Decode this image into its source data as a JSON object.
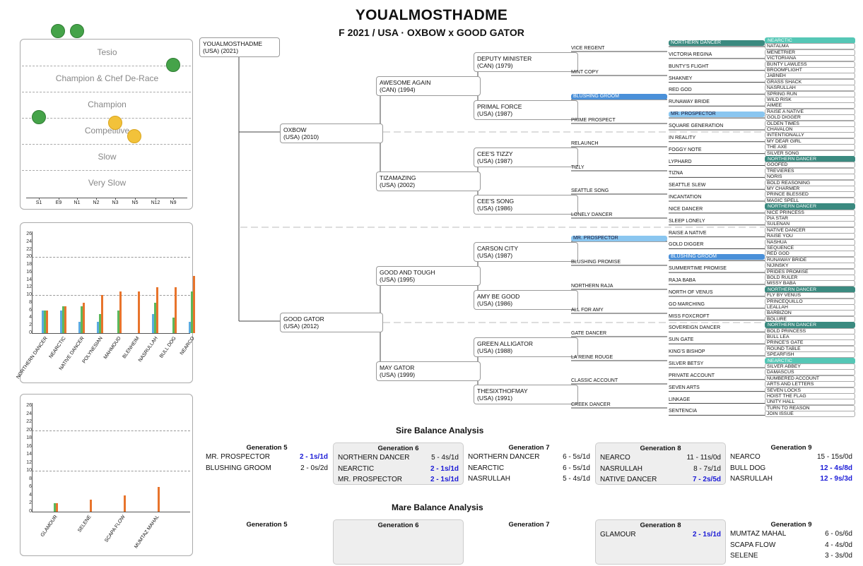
{
  "header": {
    "title": "YOUALMOSTHADME",
    "subtitle": "F 2021 / USA · OXBOW x GOOD GATOR"
  },
  "classification": {
    "levels": [
      "Tesio",
      "Champion & Chef De-Race",
      "Champion",
      "Competitive",
      "Slow",
      "Very Slow"
    ],
    "x_ticks": [
      "S1",
      "E9",
      "N1",
      "N2",
      "N3",
      "N5",
      "N12",
      "N9"
    ],
    "dots": [
      {
        "color": "green",
        "label": "S1"
      },
      {
        "color": "green",
        "label": "E9"
      },
      {
        "color": "green",
        "label": "N9"
      },
      {
        "color": "green",
        "label": "S1"
      },
      {
        "color": "yellow",
        "label": "N3"
      },
      {
        "color": "yellow",
        "label": "N5"
      }
    ]
  },
  "sire_chart": {
    "type": "bar",
    "ylim": [
      0,
      26
    ],
    "ticks": [
      0,
      2,
      4,
      6,
      8,
      10,
      12,
      14,
      16,
      18,
      20,
      22,
      24,
      26
    ],
    "categories": [
      "NORTHERN DANCER",
      "NEARCTIC",
      "NATIVE DANCER",
      "POLYNESIAN",
      "MAHMOUD",
      "BLENHEIM",
      "NASRULLAH",
      "BULL DOG",
      "NEARCO"
    ],
    "series": [
      {
        "color": "#5aabe0",
        "values": [
          6,
          6,
          3,
          3,
          0,
          0,
          5,
          0,
          3
        ]
      },
      {
        "color": "#5cb85c",
        "values": [
          6,
          7,
          7,
          5,
          6,
          0,
          8,
          4,
          11
        ]
      },
      {
        "color": "#e8742c",
        "values": [
          6,
          7,
          8,
          10,
          11,
          11,
          12,
          12,
          15
        ]
      }
    ]
  },
  "mare_chart": {
    "type": "bar",
    "ylim": [
      0,
      26
    ],
    "ticks": [
      0,
      2,
      4,
      6,
      8,
      10,
      12,
      14,
      16,
      18,
      20,
      22,
      24,
      26
    ],
    "categories": [
      "GLAMOUR",
      "SELENE",
      "SCAPA FLOW",
      "MUMTAZ MAHAL"
    ],
    "series": [
      {
        "color": "#5aabe0",
        "values": [
          0,
          0,
          0,
          0
        ]
      },
      {
        "color": "#5cb85c",
        "values": [
          2,
          0,
          0,
          0
        ]
      },
      {
        "color": "#e8742c",
        "values": [
          2,
          3,
          4,
          6
        ]
      }
    ]
  },
  "pedigree": {
    "g0": {
      "name": "YOUALMOSTHADME",
      "info": "(USA) (2021)"
    },
    "g1": [
      {
        "name": "OXBOW",
        "info": "(USA) (2010)"
      },
      {
        "name": "GOOD GATOR",
        "info": "(USA) (2012)"
      }
    ],
    "g2": [
      {
        "name": "AWESOME AGAIN",
        "info": "(CAN) (1994)"
      },
      {
        "name": "TIZAMAZING",
        "info": "(USA) (2002)"
      },
      {
        "name": "GOOD AND TOUGH",
        "info": "(USA) (1995)"
      },
      {
        "name": "MAY GATOR",
        "info": "(USA) (1999)"
      }
    ],
    "g3": [
      {
        "name": "DEPUTY MINISTER",
        "info": "(CAN) (1979)"
      },
      {
        "name": "PRIMAL FORCE",
        "info": "(USA) (1987)"
      },
      {
        "name": "CEE'S TIZZY",
        "info": "(USA) (1987)"
      },
      {
        "name": "CEE'S SONG",
        "info": "(USA) (1986)"
      },
      {
        "name": "CARSON CITY",
        "info": "(USA) (1987)"
      },
      {
        "name": "AMY BE GOOD",
        "info": "(USA) (1986)"
      },
      {
        "name": "GREEN ALLIGATOR",
        "info": "(USA) (1988)"
      },
      {
        "name": "THESIXTHOFMAY",
        "info": "(USA) (1991)"
      }
    ],
    "g4": [
      "VICE REGENT",
      "MINT COPY",
      "BLUSHING GROOM",
      "PRIME PROSPECT",
      "RELAUNCH",
      "TIZLY",
      "SEATTLE SONG",
      "LONELY DANCER",
      "MR. PROSPECTOR",
      "BLUSHING PROMISE",
      "NORTHERN RAJA",
      "ALL FOR AMY",
      "GATE DANCER",
      "LA REINE ROUGE",
      "CLASSIC ACCOUNT",
      "CREEK DANCER"
    ],
    "g5": [
      "NORTHERN DANCER",
      "VICTORIA REGINA",
      "BUNTY'S FLIGHT",
      "SHAKNEY",
      "RED GOD",
      "RUNAWAY BRIDE",
      "MR. PROSPECTOR",
      "SQUARE GENERATION",
      "IN REALITY",
      "FOGGY NOTE",
      "LYPHARD",
      "TIZNA",
      "SEATTLE SLEW",
      "INCANTATION",
      "NICE DANCER",
      "SLEEP LONELY",
      "RAISE A NATIVE",
      "GOLD DIGGER",
      "BLUSHING GROOM",
      "SUMMERTIME PROMISE",
      "RAJA BABA",
      "NORTH OF VENUS",
      "GO MARCHING",
      "MISS FOXCROFT",
      "SOVEREIGN DANCER",
      "SUN GATE",
      "KING'S BISHOP",
      "SILVER BETSY",
      "PRIVATE ACCOUNT",
      "SEVEN ARTS",
      "LINKAGE",
      "SENTENCIA"
    ],
    "g6": [
      "NEARCTIC",
      "NATALMA",
      "MENETRIER",
      "VICTORIANA",
      "BUNTY LAWLESS",
      "BROOMFLIGHT",
      "JABNEH",
      "GRASS SHACK",
      "NASRULLAH",
      "SPRING RUN",
      "WILD RISK",
      "AIMEE",
      "RAISE A NATIVE",
      "GOLD DIGGER",
      "OLDEN TIMES",
      "CHAVALON",
      "INTENTIONALLY",
      "MY DEAR GIRL",
      "THE AXE",
      "SILVER SONG",
      "NORTHERN DANCER",
      "GOOFED",
      "TREVIERES",
      "NORIS",
      "BOLD REASONING",
      "MY CHARMER",
      "PRINCE BLESSED",
      "MAGIC SPELL",
      "NORTHERN DANCER",
      "NICE PRINCESS",
      "PIA STAR",
      "SULENAN",
      "NATIVE DANCER",
      "RAISE YOU",
      "NASHUA",
      "SEQUENCE",
      "RED GOD",
      "RUNAWAY BRIDE",
      "NIJINSKY",
      "PRIDES PROMISE",
      "BOLD RULER",
      "MISSY BABA",
      "NORTHERN DANCER",
      "FLY BY VENUS",
      "PRINCEQUILLO",
      "LEALLAH",
      "BARBIZON",
      "BOLURE",
      "NORTHERN DANCER",
      "BOLD PRINCESS",
      "BULL LEA",
      "PRINCE'S GATE",
      "ROUND TABLE",
      "SPEARFISH",
      "NEARCTIC",
      "SILVER ABBEY",
      "DAMASCUS",
      "NUMBERED ACCOUNT",
      "ARTS AND LETTERS",
      "SEVEN LOCKS",
      "HOIST THE FLAG",
      "UNITY HALL",
      "TURN TO REASON",
      "JOIN ISSUE"
    ]
  },
  "sire_balance": {
    "title": "Sire Balance Analysis",
    "generations": [
      {
        "label": "Generation 5",
        "rows": [
          {
            "name": "MR. PROSPECTOR",
            "value": "2 - 1s/1d",
            "hl": true
          },
          {
            "name": "BLUSHING GROOM",
            "value": "2 - 0s/2d",
            "hl": false
          }
        ]
      },
      {
        "label": "Generation 6",
        "rows": [
          {
            "name": "NORTHERN DANCER",
            "value": "5 - 4s/1d",
            "hl": false
          },
          {
            "name": "NEARCTIC",
            "value": "2 - 1s/1d",
            "hl": true
          },
          {
            "name": "MR. PROSPECTOR",
            "value": "2 - 1s/1d",
            "hl": true
          }
        ]
      },
      {
        "label": "Generation 7",
        "rows": [
          {
            "name": "NORTHERN DANCER",
            "value": "6 - 5s/1d",
            "hl": false
          },
          {
            "name": "NEARCTIC",
            "value": "6 - 5s/1d",
            "hl": false
          },
          {
            "name": "NASRULLAH",
            "value": "5 - 4s/1d",
            "hl": false
          }
        ]
      },
      {
        "label": "Generation 8",
        "rows": [
          {
            "name": "NEARCO",
            "value": "11 - 11s/0d",
            "hl": false
          },
          {
            "name": "NASRULLAH",
            "value": "8 - 7s/1d",
            "hl": false
          },
          {
            "name": "NATIVE DANCER",
            "value": "7 - 2s/5d",
            "hl": true
          }
        ]
      },
      {
        "label": "Generation 9",
        "rows": [
          {
            "name": "NEARCO",
            "value": "15 - 15s/0d",
            "hl": false
          },
          {
            "name": "BULL DOG",
            "value": "12 - 4s/8d",
            "hl": true
          },
          {
            "name": "NASRULLAH",
            "value": "12 - 9s/3d",
            "hl": true
          }
        ]
      }
    ]
  },
  "mare_balance": {
    "title": "Mare Balance Analysis",
    "generations": [
      {
        "label": "Generation 5",
        "rows": []
      },
      {
        "label": "Generation 6",
        "rows": []
      },
      {
        "label": "Generation 7",
        "rows": []
      },
      {
        "label": "Generation 8",
        "rows": [
          {
            "name": "GLAMOUR",
            "value": "2 - 1s/1d",
            "hl": true
          }
        ]
      },
      {
        "label": "Generation 9",
        "rows": [
          {
            "name": "MUMTAZ MAHAL",
            "value": "6 - 0s/6d",
            "hl": false
          },
          {
            "name": "SCAPA FLOW",
            "value": "4 - 4s/0d",
            "hl": false
          },
          {
            "name": "SELENE",
            "value": "3 - 3s/0d",
            "hl": false
          }
        ]
      }
    ]
  }
}
